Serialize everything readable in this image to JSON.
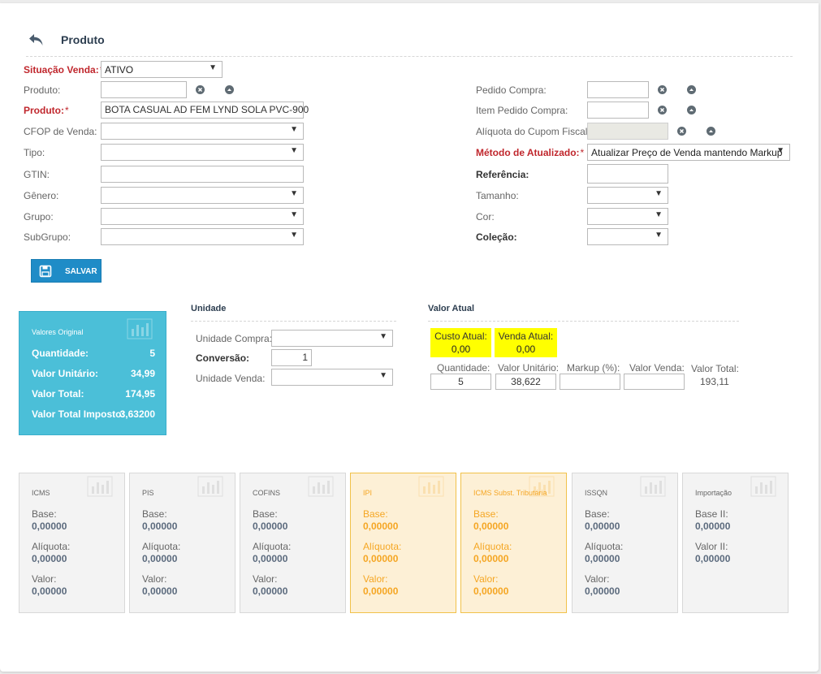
{
  "header": {
    "title": "Produto",
    "back_icon": "back-arrow-icon"
  },
  "form": {
    "situacao": {
      "label": "Situação Venda:",
      "value": "ATIVO"
    },
    "produto_busca": {
      "label": "Produto:",
      "value": ""
    },
    "produto": {
      "label": "Produto:",
      "value": "BOTA CASUAL AD FEM LYND SOLA PVC-900"
    },
    "cfop": {
      "label": "CFOP de Venda:",
      "value": ""
    },
    "tipo": {
      "label": "Tipo:",
      "value": ""
    },
    "gtin": {
      "label": "GTIN:",
      "value": ""
    },
    "genero": {
      "label": "Gênero:",
      "value": ""
    },
    "grupo": {
      "label": "Grupo:",
      "value": ""
    },
    "subgrupo": {
      "label": "SubGrupo:",
      "value": ""
    },
    "pedido_compra": {
      "label": "Pedido Compra:",
      "value": ""
    },
    "item_pedido": {
      "label": "Item Pedido Compra:",
      "value": ""
    },
    "aliquota_cupom": {
      "label": "Alíquota do Cupom Fiscal:",
      "value": ""
    },
    "metodo": {
      "label": "Método de Atualizado:",
      "value": "Atualizar Preço de Venda mantendo Markup"
    },
    "referencia": {
      "label": "Referência:",
      "value": ""
    },
    "tamanho": {
      "label": "Tamanho:",
      "value": ""
    },
    "cor": {
      "label": "Cor:",
      "value": ""
    },
    "colecao": {
      "label": "Coleção:",
      "value": ""
    },
    "required_mark": "*"
  },
  "actions": {
    "save_label": "SALVAR"
  },
  "valores_original": {
    "title": "Valores Original",
    "rows": [
      {
        "label": "Quantidade:",
        "value": "5"
      },
      {
        "label": "Valor Unitário:",
        "value": "34,99"
      },
      {
        "label": "Valor Total:",
        "value": "174,95"
      },
      {
        "label": "Valor Total Imposto:",
        "value": "3,63200"
      }
    ]
  },
  "unidade": {
    "title": "Unidade",
    "compra_label": "Unidade Compra:",
    "compra_value": "",
    "conversao_label": "Conversão:",
    "conversao_value": "1",
    "venda_label": "Unidade Venda:",
    "venda_value": ""
  },
  "valor_atual": {
    "title": "Valor Atual",
    "custo_label": "Custo Atual:",
    "custo_value": "0,00",
    "venda_label": "Venda Atual:",
    "venda_value": "0,00",
    "quantidade_label": "Quantidade:",
    "quantidade_value": "5",
    "unitario_label": "Valor Unitário:",
    "unitario_value": "38,622",
    "markup_label": "Markup (%):",
    "markup_value": "",
    "venda_valor_label": "Valor Venda:",
    "venda_valor_value": "",
    "total_label": "Valor Total:",
    "total_value": "193,11"
  },
  "taxes": [
    {
      "name": "ICMS",
      "fields": [
        {
          "label": "Base:",
          "value": "0,00000"
        },
        {
          "label": "Alíquota:",
          "value": "0,00000"
        },
        {
          "label": "Valor:",
          "value": "0,00000"
        }
      ]
    },
    {
      "name": "PIS",
      "fields": [
        {
          "label": "Base:",
          "value": "0,00000"
        },
        {
          "label": "Alíquota:",
          "value": "0,00000"
        },
        {
          "label": "Valor:",
          "value": "0,00000"
        }
      ]
    },
    {
      "name": "COFINS",
      "fields": [
        {
          "label": "Base:",
          "value": "0,00000"
        },
        {
          "label": "Alíquota:",
          "value": "0,00000"
        },
        {
          "label": "Valor:",
          "value": "0,00000"
        }
      ]
    },
    {
      "name": "IPI",
      "fields": [
        {
          "label": "Base:",
          "value": "0,00000"
        },
        {
          "label": "Alíquota:",
          "value": "0,00000"
        },
        {
          "label": "Valor:",
          "value": "0,00000"
        }
      ]
    },
    {
      "name": "ICMS Subst. Tributária",
      "fields": [
        {
          "label": "Base:",
          "value": "0,00000"
        },
        {
          "label": "Alíquota:",
          "value": "0,00000"
        },
        {
          "label": "Valor:",
          "value": "0,00000"
        }
      ]
    },
    {
      "name": "ISSQN",
      "fields": [
        {
          "label": "Base:",
          "value": "0,00000"
        },
        {
          "label": "Alíquota:",
          "value": "0,00000"
        },
        {
          "label": "Valor:",
          "value": "0,00000"
        }
      ]
    },
    {
      "name": "Importação",
      "fields": [
        {
          "label": "Base II:",
          "value": "0,00000"
        },
        {
          "label": "Valor II:",
          "value": "0,00000"
        }
      ]
    }
  ],
  "colors": {
    "required": "#c0272d",
    "primary": "#1f8cc7",
    "info": "#4bbfd8",
    "highlight": "#ffff00",
    "warning": "#f5a623"
  }
}
